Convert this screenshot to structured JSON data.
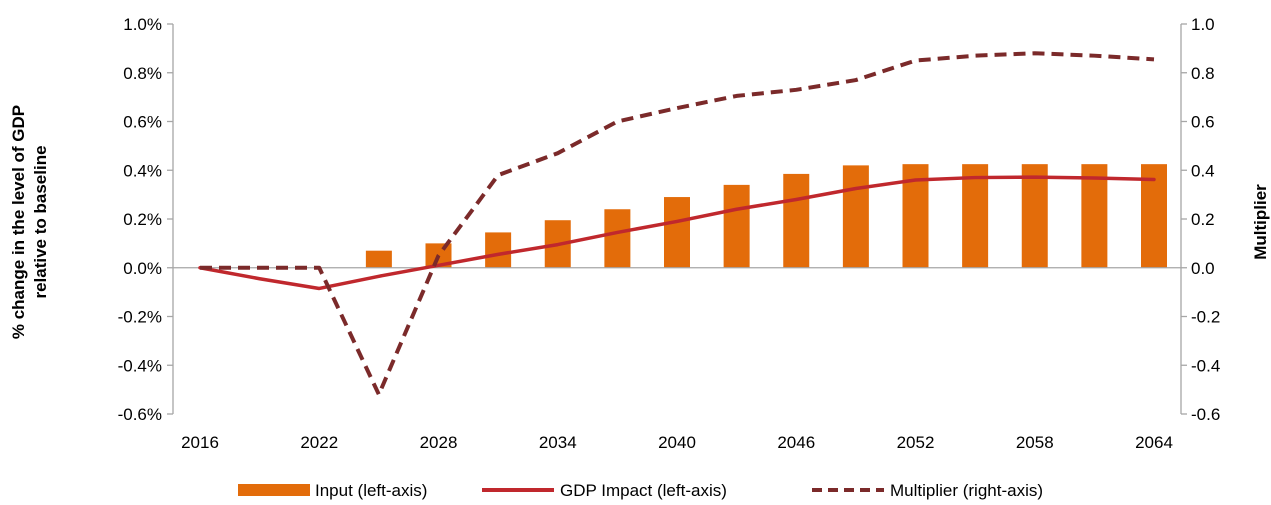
{
  "chart_data": {
    "type": "bar",
    "x": [
      2016,
      2019,
      2022,
      2025,
      2028,
      2031,
      2034,
      2037,
      2040,
      2043,
      2046,
      2049,
      2052,
      2055,
      2058,
      2061,
      2064
    ],
    "xtick_labels": [
      "2016",
      "2022",
      "2028",
      "2034",
      "2040",
      "2046",
      "2052",
      "2058",
      "2064"
    ],
    "ylabel_lines": [
      "% change in the level of GDP",
      "relative to baseline"
    ],
    "y2label": "Multiplier",
    "ylim": [
      -0.6,
      1.0
    ],
    "y2lim": [
      -0.6,
      1.0
    ],
    "yticks": [
      "1.0%",
      "0.8%",
      "0.6%",
      "0.4%",
      "0.2%",
      "0.0%",
      "-0.2%",
      "-0.4%",
      "-0.6%"
    ],
    "y2ticks": [
      "1.0",
      "0.8",
      "0.6",
      "0.4",
      "0.2",
      "0.0",
      "-0.2",
      "-0.4",
      "-0.6"
    ],
    "grid": false,
    "legend_position": "bottom",
    "series": [
      {
        "name": "Input (left-axis)",
        "type": "bar",
        "axis": "left",
        "color": "#E36C0A",
        "values": [
          0,
          0,
          0,
          0.07,
          0.1,
          0.145,
          0.195,
          0.24,
          0.29,
          0.34,
          0.385,
          0.42,
          0.425,
          0.425,
          0.425,
          0.425,
          0.425
        ]
      },
      {
        "name": "GDP Impact (left-axis)",
        "type": "line",
        "axis": "left",
        "color": "#C0282D",
        "values": [
          0,
          -0.045,
          -0.085,
          -0.035,
          0.01,
          0.055,
          0.095,
          0.145,
          0.19,
          0.24,
          0.28,
          0.325,
          0.36,
          0.37,
          0.372,
          0.368,
          0.362
        ]
      },
      {
        "name": "Multiplier (right-axis)",
        "type": "line",
        "dash": true,
        "axis": "right",
        "color": "#7B2A2A",
        "values": [
          0,
          0,
          0,
          -0.52,
          0.05,
          0.38,
          0.47,
          0.6,
          0.655,
          0.705,
          0.73,
          0.77,
          0.85,
          0.87,
          0.88,
          0.87,
          0.855
        ]
      }
    ]
  }
}
